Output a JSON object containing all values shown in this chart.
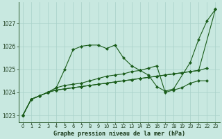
{
  "title": "Graphe pression niveau de la mer (hPa)",
  "background_color": "#c8e8e0",
  "grid_color": "#a8d0c8",
  "line_color": "#1a5c1a",
  "xlim": [
    -0.5,
    23.5
  ],
  "ylim": [
    1022.7,
    1027.9
  ],
  "yticks": [
    1023,
    1024,
    1025,
    1026,
    1027
  ],
  "xticks": [
    0,
    1,
    2,
    3,
    4,
    5,
    6,
    7,
    8,
    9,
    10,
    11,
    12,
    13,
    14,
    15,
    16,
    17,
    18,
    19,
    20,
    21,
    22,
    23
  ],
  "series": [
    {
      "x": [
        0,
        1,
        2,
        3,
        4,
        5,
        6,
        7,
        8,
        9,
        10,
        11,
        12,
        13,
        14,
        15,
        16,
        17,
        18,
        20,
        21,
        22,
        23
      ],
      "y": [
        1023.0,
        1023.7,
        1023.85,
        1024.0,
        1024.2,
        1025.0,
        1025.85,
        1026.0,
        1026.05,
        1026.05,
        1025.9,
        1026.05,
        1025.5,
        1025.15,
        1024.95,
        1024.75,
        1024.25,
        1024.05,
        1024.15,
        1025.3,
        1026.3,
        1027.1,
        1027.6
      ]
    },
    {
      "x": [
        0,
        1,
        2,
        3,
        4,
        5,
        6,
        7,
        8,
        9,
        10,
        11,
        12,
        13,
        14,
        15,
        16,
        17,
        18,
        19,
        20,
        21,
        22
      ],
      "y": [
        1023.0,
        1023.7,
        1023.85,
        1024.0,
        1024.2,
        1024.3,
        1024.35,
        1024.4,
        1024.5,
        1024.6,
        1024.7,
        1024.75,
        1024.8,
        1024.9,
        1024.95,
        1025.05,
        1025.15,
        1024.0,
        1024.1,
        1024.2,
        1024.4,
        1024.5,
        1024.5
      ]
    },
    {
      "x": [
        0,
        1,
        2,
        3,
        4,
        5,
        6,
        7,
        8,
        9,
        10,
        11,
        12,
        13,
        14,
        15,
        16,
        17,
        18,
        19,
        20,
        21,
        22
      ],
      "y": [
        1023.0,
        1023.7,
        1023.85,
        1024.0,
        1024.1,
        1024.15,
        1024.2,
        1024.25,
        1024.3,
        1024.35,
        1024.4,
        1024.45,
        1024.5,
        1024.55,
        1024.6,
        1024.65,
        1024.7,
        1024.75,
        1024.8,
        1024.85,
        1024.9,
        1024.95,
        1025.05
      ]
    },
    {
      "x": [
        0,
        1,
        2,
        3,
        4,
        5,
        6,
        7,
        8,
        9,
        10,
        11,
        12,
        13,
        14,
        15,
        16,
        17,
        18,
        19,
        20,
        21,
        23
      ],
      "y": [
        1023.0,
        1023.7,
        1023.85,
        1024.0,
        1024.1,
        1024.15,
        1024.2,
        1024.25,
        1024.3,
        1024.35,
        1024.4,
        1024.45,
        1024.5,
        1024.55,
        1024.6,
        1024.65,
        1024.7,
        1024.75,
        1024.8,
        1024.85,
        1024.9,
        1024.95,
        1027.6
      ]
    }
  ]
}
